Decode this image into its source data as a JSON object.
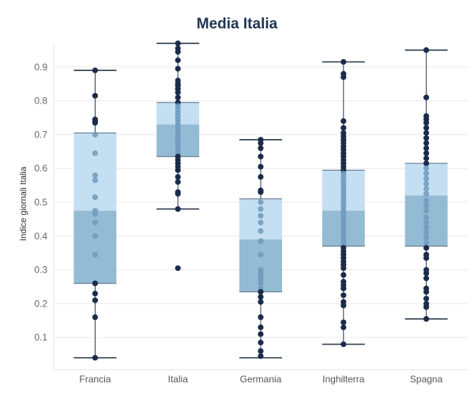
{
  "chart_data": {
    "type": "boxplot",
    "title": "Media Italia",
    "xlabel": "",
    "ylabel": "Indice giornali Italia",
    "ylim": [
      0.0,
      0.97
    ],
    "yticks": [
      0.1,
      0.2,
      0.3,
      0.4,
      0.5,
      0.6,
      0.7,
      0.8,
      0.9
    ],
    "grid": "horizontal",
    "categories": [
      "Francia",
      "Italia",
      "Germania",
      "Inghilterra",
      "Spagna"
    ],
    "boxes": [
      {
        "category": "Francia",
        "min": 0.04,
        "q1": 0.26,
        "median": 0.475,
        "q3": 0.705,
        "max": 0.89,
        "points": [
          0.89,
          0.815,
          0.745,
          0.74,
          0.735,
          0.7,
          0.645,
          0.58,
          0.565,
          0.515,
          0.475,
          0.465,
          0.44,
          0.4,
          0.345,
          0.26,
          0.23,
          0.21,
          0.16,
          0.04
        ]
      },
      {
        "category": "Italia",
        "min": 0.48,
        "q1": 0.635,
        "median": 0.73,
        "q3": 0.795,
        "max": 0.97,
        "points": [
          0.97,
          0.955,
          0.945,
          0.92,
          0.895,
          0.86,
          0.85,
          0.845,
          0.835,
          0.825,
          0.81,
          0.795,
          0.785,
          0.775,
          0.765,
          0.755,
          0.745,
          0.735,
          0.725,
          0.715,
          0.705,
          0.695,
          0.685,
          0.675,
          0.665,
          0.655,
          0.645,
          0.635,
          0.625,
          0.615,
          0.605,
          0.595,
          0.575,
          0.56,
          0.53,
          0.525,
          0.48,
          0.305
        ]
      },
      {
        "category": "Germania",
        "min": 0.04,
        "q1": 0.235,
        "median": 0.39,
        "q3": 0.51,
        "max": 0.685,
        "points": [
          0.685,
          0.675,
          0.66,
          0.635,
          0.605,
          0.575,
          0.535,
          0.53,
          0.5,
          0.48,
          0.46,
          0.44,
          0.415,
          0.385,
          0.345,
          0.3,
          0.29,
          0.28,
          0.27,
          0.26,
          0.245,
          0.235,
          0.22,
          0.205,
          0.16,
          0.13,
          0.11,
          0.085,
          0.06,
          0.045
        ]
      },
      {
        "category": "Inghilterra",
        "min": 0.08,
        "q1": 0.37,
        "median": 0.475,
        "q3": 0.595,
        "max": 0.915,
        "points": [
          0.915,
          0.88,
          0.87,
          0.74,
          0.72,
          0.705,
          0.695,
          0.685,
          0.675,
          0.665,
          0.655,
          0.645,
          0.635,
          0.625,
          0.615,
          0.605,
          0.595,
          0.585,
          0.575,
          0.565,
          0.555,
          0.545,
          0.535,
          0.525,
          0.515,
          0.505,
          0.495,
          0.485,
          0.475,
          0.465,
          0.455,
          0.445,
          0.435,
          0.425,
          0.415,
          0.405,
          0.395,
          0.385,
          0.375,
          0.365,
          0.355,
          0.345,
          0.335,
          0.325,
          0.315,
          0.305,
          0.285,
          0.265,
          0.255,
          0.245,
          0.225,
          0.205,
          0.195,
          0.145,
          0.13,
          0.08
        ]
      },
      {
        "category": "Spagna",
        "min": 0.155,
        "q1": 0.37,
        "median": 0.52,
        "q3": 0.615,
        "max": 0.95,
        "points": [
          0.95,
          0.81,
          0.755,
          0.745,
          0.735,
          0.72,
          0.705,
          0.69,
          0.675,
          0.66,
          0.645,
          0.63,
          0.615,
          0.6,
          0.585,
          0.57,
          0.555,
          0.54,
          0.525,
          0.505,
          0.49,
          0.475,
          0.455,
          0.44,
          0.425,
          0.41,
          0.395,
          0.38,
          0.365,
          0.345,
          0.335,
          0.3,
          0.29,
          0.275,
          0.245,
          0.235,
          0.215,
          0.2,
          0.19,
          0.155
        ]
      }
    ],
    "colors": {
      "upper_box": "#c4dff2",
      "lower_box": "#93bcd4",
      "box_edge": "#5a6f80",
      "whisker": "#2b3a4a",
      "point": "#1b2c4a",
      "point_inside": "#6f9abd",
      "grid": "#ebebeb"
    }
  }
}
